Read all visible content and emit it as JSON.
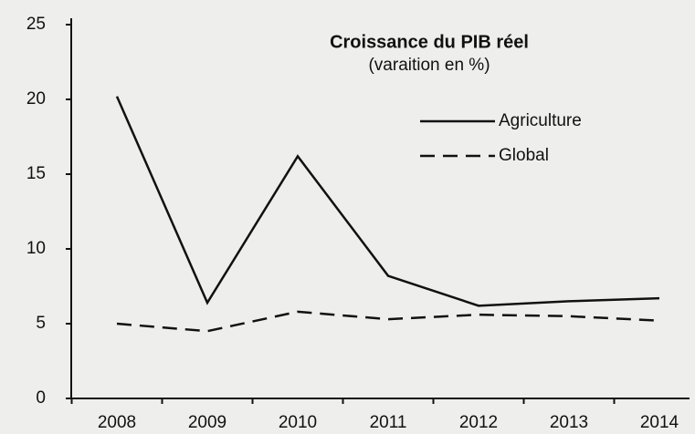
{
  "chart_data": {
    "type": "line",
    "title": "Croissance du PIB réel",
    "subtitle": "(varaition en %)",
    "categories": [
      "2008",
      "2009",
      "2010",
      "2011",
      "2012",
      "2013",
      "2014"
    ],
    "series": [
      {
        "name": "Agriculture",
        "color": "#111111",
        "style": "solid",
        "values": [
          20.2,
          6.4,
          16.2,
          8.2,
          6.2,
          6.5,
          6.7
        ]
      },
      {
        "name": "Global",
        "color": "#111111",
        "style": "dashed",
        "values": [
          5.0,
          4.5,
          5.8,
          5.3,
          5.6,
          5.5,
          5.2
        ]
      }
    ],
    "ylim": [
      0,
      25
    ],
    "yticks": [
      0,
      5,
      10,
      15,
      20,
      25
    ],
    "grid": false,
    "legend": "top-right"
  }
}
